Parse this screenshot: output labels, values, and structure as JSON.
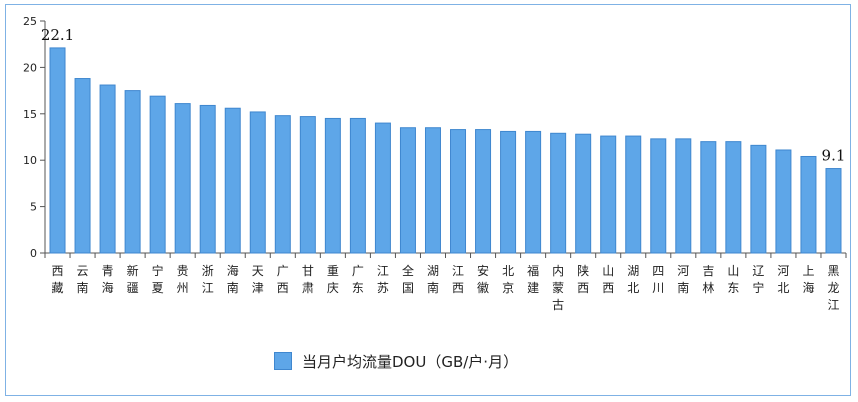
{
  "chart_data": {
    "type": "bar",
    "categories": [
      "西藏",
      "云南",
      "青海",
      "新疆",
      "宁夏",
      "贵州",
      "浙江",
      "海南",
      "天津",
      "广西",
      "甘肃",
      "重庆",
      "广东",
      "江苏",
      "全国",
      "湖南",
      "江西",
      "安徽",
      "北京",
      "福建",
      "内蒙古",
      "陕西",
      "山西",
      "湖北",
      "四川",
      "河南",
      "吉林",
      "山东",
      "辽宁",
      "河北",
      "上海",
      "黑龙江"
    ],
    "series": [
      {
        "name": "当月户均流量DOU（GB/户·月）",
        "values": [
          22.1,
          18.8,
          18.1,
          17.5,
          16.9,
          16.1,
          15.9,
          15.6,
          15.2,
          14.8,
          14.7,
          14.5,
          14.5,
          14.0,
          13.5,
          13.5,
          13.3,
          13.3,
          13.1,
          13.1,
          12.9,
          12.8,
          12.6,
          12.6,
          12.3,
          12.3,
          12.0,
          12.0,
          11.6,
          11.1,
          10.4,
          9.1
        ]
      }
    ],
    "ylim": [
      0,
      25
    ],
    "yticks": [
      0,
      5,
      10,
      15,
      20,
      25
    ],
    "data_labels": [
      {
        "index": 0,
        "text": "22.1"
      },
      {
        "index": 31,
        "text": "9.1"
      }
    ],
    "legend_position": "bottom",
    "grid": false,
    "colors": {
      "bar": "#5ea6e8",
      "bar_edge": "#3f87cf",
      "axis": "#555555"
    }
  }
}
